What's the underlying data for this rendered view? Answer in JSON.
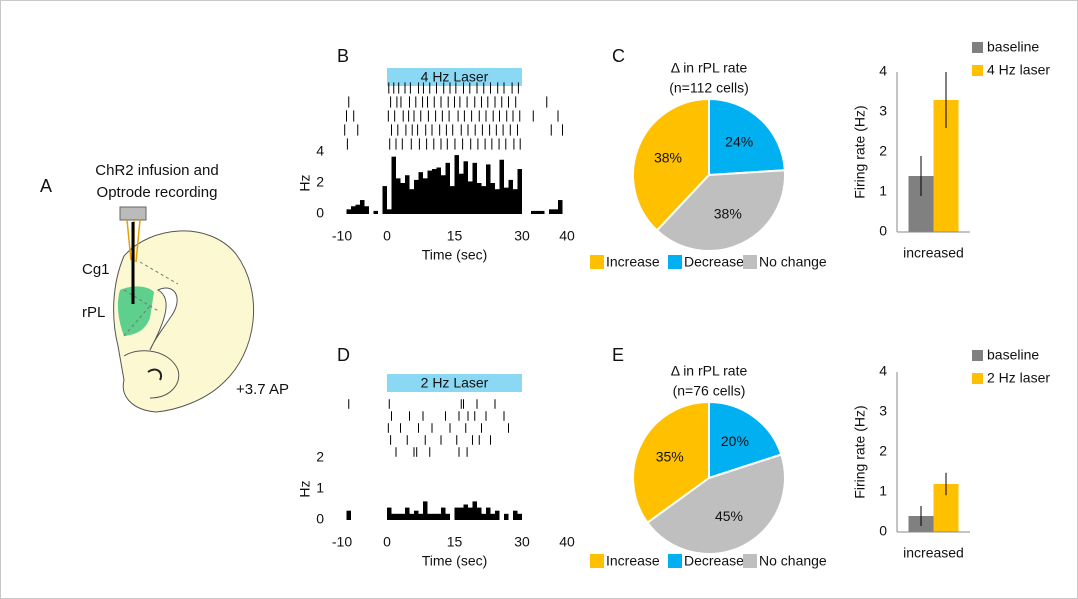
{
  "panel_labels": [
    "A",
    "B",
    "C",
    "D",
    "E"
  ],
  "diagram": {
    "title_lines": [
      "ChR2 infusion and",
      "Optrode recording"
    ],
    "labels": [
      "Cg1",
      "rPL",
      "+3.7 AP"
    ]
  },
  "chart_data": [
    {
      "type": "histogram",
      "color": "#000000",
      "bins": [
        -10,
        -9,
        -8,
        -7,
        -6,
        -5,
        -4,
        -3,
        -2,
        -1,
        0,
        1,
        2,
        3,
        4,
        5,
        6,
        7,
        8,
        9,
        10,
        11,
        12,
        13,
        14,
        15,
        16,
        17,
        18,
        19,
        20,
        21,
        22,
        23,
        24,
        25,
        26,
        27,
        28,
        29,
        30,
        31,
        32,
        33,
        34,
        35,
        36,
        37,
        38,
        39,
        40
      ],
      "counts": [
        0,
        0.3,
        0.5,
        0.6,
        0.9,
        0.5,
        0,
        0.2,
        0,
        1.8,
        0.3,
        3.7,
        2.3,
        2.0,
        2.5,
        1.6,
        2.2,
        2.7,
        2.3,
        2.8,
        2.9,
        3.0,
        2.5,
        3.3,
        1.8,
        3.8,
        2.6,
        3.4,
        2.1,
        3.3,
        2.0,
        1.8,
        3.2,
        2.0,
        1.6,
        3.5,
        1.7,
        2.2,
        1.6,
        2.9,
        0,
        0,
        0.2,
        0.2,
        0.2,
        0,
        0.3,
        0.3,
        0.9,
        0
      ],
      "xlim": [
        -10,
        40
      ],
      "xticks": [
        -10,
        0,
        15,
        30,
        40
      ],
      "ylim": [
        0,
        4
      ],
      "yticks": [
        0,
        2,
        4
      ],
      "xlabel": "Time (sec)",
      "ylabel": "Hz",
      "laser": {
        "label": "4 Hz Laser",
        "start": 0,
        "end": 30,
        "color": "#8ad8f4"
      },
      "raster": [
        [
          0.4,
          1.5,
          2.6,
          4,
          5.2,
          7,
          8.1,
          9.5,
          11,
          12.6,
          14,
          15.3,
          17,
          18.4,
          20,
          21.5,
          23,
          24.6,
          26,
          27.8,
          29.2
        ],
        [
          -8.5,
          0.8,
          2.2,
          3.1,
          5,
          6.4,
          7.9,
          9,
          10.5,
          12,
          13.6,
          15,
          16.2,
          17.8,
          19.5,
          21,
          22.4,
          24,
          25.5,
          27,
          28.6,
          35.5
        ],
        [
          -9,
          -7.4,
          0.3,
          1.7,
          3.6,
          4.8,
          6,
          7.5,
          9.2,
          10.8,
          12.3,
          13.8,
          15.8,
          17.2,
          18.8,
          20.5,
          22,
          23.6,
          25,
          26.6,
          28,
          29.5,
          32.5,
          38
        ],
        [
          -9.4,
          -6.5,
          1,
          2.4,
          4.2,
          5.6,
          6.8,
          8.6,
          10,
          11.7,
          13.2,
          14.6,
          16.5,
          18,
          19.6,
          21.2,
          22.8,
          24.3,
          25.8,
          27.4,
          29,
          36.5,
          39
        ],
        [
          -8.8,
          0.6,
          2,
          3.4,
          5.4,
          7.2,
          8.8,
          10.4,
          12,
          13.4,
          15.1,
          16.8,
          18.6,
          20.2,
          21.8,
          23.3,
          24.9,
          26.4,
          28.2,
          29.6
        ]
      ]
    },
    {
      "type": "pie",
      "title": "Δ in rPL rate",
      "subtitle": "(n=112 cells)",
      "categories": [
        "Increase",
        "Decrease",
        "No change"
      ],
      "values": [
        38,
        24,
        38
      ],
      "value_labels": [
        "38%",
        "24%",
        "38%"
      ],
      "colors": [
        "#ffc000",
        "#00b0f0",
        "#bfbfbf"
      ]
    },
    {
      "type": "bar",
      "categories": [
        "increased"
      ],
      "ylabel": "Firing rate (Hz)",
      "ylim": [
        0,
        4
      ],
      "yticks": [
        0,
        1,
        2,
        3,
        4
      ],
      "series": [
        {
          "name": "baseline",
          "color": "#808080",
          "values": [
            1.4
          ],
          "errors": [
            0.5
          ]
        },
        {
          "name": "4 Hz laser",
          "color": "#ffc000",
          "values": [
            3.3
          ],
          "errors": [
            0.7
          ]
        }
      ]
    },
    {
      "type": "histogram",
      "color": "#000000",
      "bins": [
        -10,
        -9,
        -8,
        -7,
        -6,
        -5,
        -4,
        -3,
        -2,
        -1,
        0,
        1,
        2,
        3,
        4,
        5,
        6,
        7,
        8,
        9,
        10,
        11,
        12,
        13,
        14,
        15,
        16,
        17,
        18,
        19,
        20,
        21,
        22,
        23,
        24,
        25,
        26,
        27,
        28,
        29,
        30,
        31,
        32,
        33,
        34,
        35,
        36,
        37,
        38,
        39,
        40
      ],
      "counts": [
        0,
        0.3,
        0,
        0,
        0,
        0,
        0,
        0,
        0,
        0,
        0.4,
        0.2,
        0.2,
        0.2,
        0.4,
        0.2,
        0.3,
        0.2,
        0.6,
        0.2,
        0.2,
        0.2,
        0.4,
        0.2,
        0,
        0.4,
        0.4,
        0.5,
        0.4,
        0.6,
        0.4,
        0.2,
        0.4,
        0.2,
        0.3,
        0,
        0.2,
        0,
        0.3,
        0.2,
        0,
        0,
        0,
        0,
        0,
        0,
        0,
        0,
        0,
        0
      ],
      "xlim": [
        -10,
        40
      ],
      "xticks": [
        -10,
        0,
        15,
        30,
        40
      ],
      "ylim": [
        0,
        2
      ],
      "yticks": [
        0,
        1,
        2
      ],
      "xlabel": "Time (sec)",
      "ylabel": "Hz",
      "laser": {
        "label": "2 Hz Laser",
        "start": 0,
        "end": 30,
        "color": "#8ad8f4"
      },
      "raster": [
        [
          -8.5,
          0.5,
          16.5,
          17,
          20,
          24
        ],
        [
          1,
          5,
          8,
          13,
          16,
          18,
          19.5,
          22,
          26
        ],
        [
          0.3,
          3,
          7,
          10,
          14,
          17.5,
          21,
          27
        ],
        [
          0.8,
          4.5,
          8.5,
          12,
          15.5,
          19,
          20.5,
          23
        ],
        [
          2,
          6,
          6.6,
          9.5,
          16,
          17.8
        ]
      ]
    },
    {
      "type": "pie",
      "title": "Δ in rPL rate",
      "subtitle": "(n=76 cells)",
      "categories": [
        "Increase",
        "Decrease",
        "No change"
      ],
      "values": [
        35,
        20,
        45
      ],
      "value_labels": [
        "35%",
        "20%",
        "45%"
      ],
      "colors": [
        "#ffc000",
        "#00b0f0",
        "#bfbfbf"
      ]
    },
    {
      "type": "bar",
      "categories": [
        "increased"
      ],
      "ylabel": "Firing rate (Hz)",
      "ylim": [
        0,
        4
      ],
      "yticks": [
        0,
        1,
        2,
        3,
        4
      ],
      "series": [
        {
          "name": "baseline",
          "color": "#808080",
          "values": [
            0.4
          ],
          "errors": [
            0.25
          ]
        },
        {
          "name": "2 Hz laser",
          "color": "#ffc000",
          "values": [
            1.2
          ],
          "errors": [
            0.28
          ]
        }
      ]
    }
  ]
}
